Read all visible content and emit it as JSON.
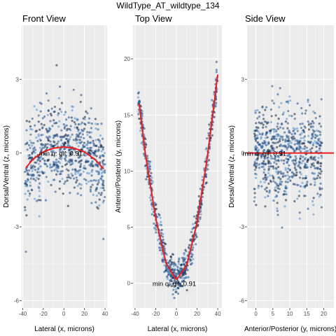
{
  "figure_title": "WildType_AT_wildtype_134",
  "colors": {
    "panel_bg": "#ebebeb",
    "grid_major": "#ffffff",
    "grid_minor": "#f4f4f4",
    "fit_line": "#ee1c1c",
    "point_dark": "#0f1f3a",
    "point_mid": "#1f4e86",
    "point_light": "#4f8fcf"
  },
  "chart_data": [
    {
      "type": "scatter",
      "title": "Front View",
      "xlabel": "Lateral (x, microns)",
      "ylabel": "Dorsal/Ventral (z, microns)",
      "xlim": [
        -41,
        42
      ],
      "ylim": [
        -6.3,
        5.2
      ],
      "xticks": [
        -40,
        -20,
        0,
        20,
        40
      ],
      "yticks": [
        -6,
        -3,
        0,
        3
      ],
      "ytick_labels": [
        "-6",
        "-3",
        "0",
        "3"
      ],
      "grid": true,
      "fit": {
        "type": "quadratic",
        "x": [
          -37,
          -30,
          -20,
          -10,
          0,
          10,
          20,
          30,
          40
        ],
        "y": [
          -0.6,
          -0.25,
          0.05,
          0.2,
          0.25,
          0.2,
          0.05,
          -0.25,
          -0.7
        ]
      },
      "annotation": {
        "text": "min q: gif: 0.91",
        "x": -3,
        "y": 0.0
      }
    },
    {
      "type": "scatter",
      "title": "Top View",
      "xlabel": "Lateral (x, microns)",
      "ylabel": "Anterior/Posterior (y, microns)",
      "xlim": [
        -42,
        44
      ],
      "ylim": [
        -2.2,
        23
      ],
      "xticks": [
        -40,
        -20,
        0,
        20,
        40
      ],
      "yticks": [
        0,
        5,
        10,
        15,
        20
      ],
      "ytick_labels": [
        "0",
        "5",
        "10",
        "15",
        "20"
      ],
      "grid": true,
      "fit": {
        "type": "quadratic",
        "x": [
          -36,
          -30,
          -20,
          -10,
          0,
          10,
          20,
          30,
          40
        ],
        "y": [
          16.0,
          11.5,
          5.8,
          1.8,
          0.3,
          1.6,
          5.4,
          11.3,
          18.6
        ]
      },
      "annotation": {
        "text": "min q: gif: 0.91",
        "x": -2,
        "y": 0.0
      }
    },
    {
      "type": "scatter",
      "title": "Side View",
      "xlabel": "Anterior/Posterior (y, microns)",
      "ylabel": "Dorsal/Ventral (z, microns)",
      "xlim": [
        -2.6,
        23
      ],
      "ylim": [
        -6.3,
        5.2
      ],
      "xticks": [
        0,
        5,
        10,
        15,
        20
      ],
      "yticks": [
        -6,
        -3,
        0,
        3
      ],
      "ytick_labels": [
        "-6",
        "-3",
        "0",
        "3"
      ],
      "grid": true,
      "fit": {
        "type": "linear",
        "x": [
          -2.6,
          23
        ],
        "y": [
          0.0,
          0.0
        ]
      },
      "annotation": {
        "text": "min q: gif: 0.91",
        "x": 2.5,
        "y": 0.0
      }
    }
  ]
}
